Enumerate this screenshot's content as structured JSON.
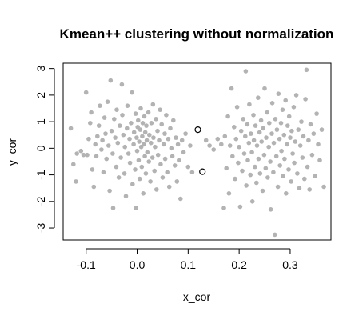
{
  "chart_data": {
    "type": "scatter",
    "title": "Kmean++ clustering without normalization",
    "xlabel": "x_cor",
    "ylabel": "y_cor",
    "xlim": [
      -0.145,
      0.38
    ],
    "ylim": [
      -3.45,
      3.2
    ],
    "x_ticks": [
      -0.1,
      0.0,
      0.1,
      0.2,
      0.3
    ],
    "x_tick_labels": [
      "-0.1",
      "0.0",
      "0.1",
      "0.2",
      "0.3"
    ],
    "y_ticks": [
      -3,
      -2,
      -1,
      0,
      1,
      2,
      3
    ],
    "y_tick_labels": [
      "-3",
      "-2",
      "-1",
      "0",
      "1",
      "2",
      "3"
    ],
    "grid": false,
    "colors": {
      "points": "#b3b3b3",
      "centers": "#000000",
      "axes": "#000000"
    },
    "series": [
      {
        "marker": "filled-circle",
        "points": [
          [
            -0.13,
            0.75
          ],
          [
            -0.125,
            -0.6
          ],
          [
            -0.12,
            -1.25
          ],
          [
            -0.118,
            -0.2
          ],
          [
            -0.11,
            -0.1
          ],
          [
            -0.105,
            -0.25
          ],
          [
            -0.1,
            2.1
          ],
          [
            -0.098,
            -0.25
          ],
          [
            -0.095,
            0.35
          ],
          [
            -0.092,
            0.95
          ],
          [
            -0.09,
            1.35
          ],
          [
            -0.088,
            -0.8
          ],
          [
            -0.085,
            -1.45
          ],
          [
            -0.082,
            0.15
          ],
          [
            -0.08,
            -0.3
          ],
          [
            -0.078,
            0.45
          ],
          [
            -0.075,
            0.85
          ],
          [
            -0.073,
            1.6
          ],
          [
            -0.07,
            -0.05
          ],
          [
            -0.068,
            0.3
          ],
          [
            -0.066,
            -0.9
          ],
          [
            -0.064,
            1.15
          ],
          [
            -0.062,
            0.55
          ],
          [
            -0.06,
            -0.4
          ],
          [
            -0.058,
            1.75
          ],
          [
            -0.056,
            0.1
          ],
          [
            -0.054,
            -1.6
          ],
          [
            -0.052,
            2.55
          ],
          [
            -0.05,
            0.65
          ],
          [
            -0.048,
            -0.2
          ],
          [
            -0.047,
            -2.25
          ],
          [
            -0.045,
            1.1
          ],
          [
            -0.043,
            0.4
          ],
          [
            -0.041,
            -0.7
          ],
          [
            -0.04,
            1.45
          ],
          [
            -0.038,
            0.2
          ],
          [
            -0.036,
            -1.1
          ],
          [
            -0.034,
            0.85
          ],
          [
            -0.032,
            -0.35
          ],
          [
            -0.03,
            2.4
          ],
          [
            -0.029,
            1.25
          ],
          [
            -0.027,
            0.5
          ],
          [
            -0.025,
            -0.95
          ],
          [
            -0.024,
            0.05
          ],
          [
            -0.022,
            -1.8
          ],
          [
            -0.02,
            0.75
          ],
          [
            -0.019,
            1.6
          ],
          [
            -0.017,
            -0.2
          ],
          [
            -0.015,
            0.35
          ],
          [
            -0.014,
            -0.55
          ],
          [
            -0.012,
            0.95
          ],
          [
            -0.01,
            2.1
          ],
          [
            -0.009,
            -1.35
          ],
          [
            -0.007,
            0.15
          ],
          [
            -0.006,
            0.6
          ],
          [
            -0.004,
            -0.8
          ],
          [
            -0.003,
            1.3
          ],
          [
            -0.002,
            -2.25
          ],
          [
            -0.001,
            0.4
          ],
          [
            0.0,
            -0.1
          ],
          [
            0.001,
            0.8
          ],
          [
            0.002,
            1.05
          ],
          [
            0.003,
            -0.45
          ],
          [
            0.004,
            0.25
          ],
          [
            0.005,
            -1.15
          ],
          [
            0.006,
            0.7
          ],
          [
            0.007,
            1.5
          ],
          [
            0.008,
            0.05
          ],
          [
            0.009,
            -0.7
          ],
          [
            0.01,
            0.45
          ],
          [
            0.011,
            0.95
          ],
          [
            0.012,
            -1.7
          ],
          [
            0.013,
            0.15
          ],
          [
            0.014,
            1.2
          ],
          [
            0.015,
            -0.3
          ],
          [
            0.016,
            0.6
          ],
          [
            0.017,
            -0.95
          ],
          [
            0.018,
            0.85
          ],
          [
            0.019,
            0.3
          ],
          [
            0.02,
            -0.15
          ],
          [
            0.022,
            1.35
          ],
          [
            0.023,
            -0.5
          ],
          [
            0.024,
            0.5
          ],
          [
            0.026,
            -1.25
          ],
          [
            0.027,
            0.2
          ],
          [
            0.028,
            0.95
          ],
          [
            0.03,
            -0.35
          ],
          [
            0.031,
            1.65
          ],
          [
            0.032,
            0.4
          ],
          [
            0.034,
            -0.85
          ],
          [
            0.035,
            0.05
          ],
          [
            0.037,
            1.1
          ],
          [
            0.038,
            -1.55
          ],
          [
            0.04,
            0.65
          ],
          [
            0.041,
            -0.25
          ],
          [
            0.043,
            0.3
          ],
          [
            0.045,
            1.45
          ],
          [
            0.046,
            -0.6
          ],
          [
            0.048,
            0.9
          ],
          [
            0.05,
            -1.1
          ],
          [
            0.052,
            0.15
          ],
          [
            0.054,
            0.55
          ],
          [
            0.055,
            -0.4
          ],
          [
            0.057,
            1.25
          ],
          [
            0.059,
            -0.9
          ],
          [
            0.061,
            0.35
          ],
          [
            0.063,
            -1.45
          ],
          [
            0.065,
            0.75
          ],
          [
            0.067,
            0.0
          ],
          [
            0.069,
            -0.3
          ],
          [
            0.071,
            1.05
          ],
          [
            0.074,
            -0.65
          ],
          [
            0.076,
            0.4
          ],
          [
            0.078,
            -1.25
          ],
          [
            0.08,
            0.15
          ],
          [
            0.082,
            -0.45
          ],
          [
            0.085,
            -1.9
          ],
          [
            0.088,
            0.3
          ],
          [
            0.091,
            -0.15
          ],
          [
            0.095,
            0.55
          ],
          [
            0.1,
            -0.7
          ],
          [
            0.104,
            0.1
          ],
          [
            0.108,
            -0.9
          ],
          [
            0.135,
            0.3
          ],
          [
            0.142,
            0.1
          ],
          [
            0.15,
            -0.05
          ],
          [
            0.158,
            0.35
          ],
          [
            0.165,
            0.15
          ],
          [
            0.17,
            -2.25
          ],
          [
            0.172,
            0.45
          ],
          [
            0.175,
            -0.75
          ],
          [
            0.178,
            1.2
          ],
          [
            0.18,
            -1.7
          ],
          [
            0.182,
            0.1
          ],
          [
            0.185,
            2.25
          ],
          [
            0.187,
            -0.3
          ],
          [
            0.19,
            0.8
          ],
          [
            0.192,
            -1.15
          ],
          [
            0.194,
            0.35
          ],
          [
            0.196,
            1.55
          ],
          [
            0.198,
            -0.55
          ],
          [
            0.2,
            0.05
          ],
          [
            0.202,
            -2.2
          ],
          [
            0.204,
            0.65
          ],
          [
            0.206,
            -0.85
          ],
          [
            0.208,
            1.1
          ],
          [
            0.21,
            -0.2
          ],
          [
            0.212,
            0.45
          ],
          [
            0.213,
            2.9
          ],
          [
            0.214,
            -1.4
          ],
          [
            0.216,
            0.9
          ],
          [
            0.217,
            -0.45
          ],
          [
            0.219,
            0.2
          ],
          [
            0.22,
            1.65
          ],
          [
            0.222,
            -1.0
          ],
          [
            0.223,
            0.55
          ],
          [
            0.225,
            -0.15
          ],
          [
            0.226,
            -2.0
          ],
          [
            0.228,
            1.25
          ],
          [
            0.229,
            0.3
          ],
          [
            0.231,
            -0.7
          ],
          [
            0.232,
            0.85
          ],
          [
            0.234,
            -1.3
          ],
          [
            0.235,
            0.1
          ],
          [
            0.237,
            1.9
          ],
          [
            0.238,
            -0.4
          ],
          [
            0.24,
            0.6
          ],
          [
            0.241,
            -0.95
          ],
          [
            0.243,
            1.05
          ],
          [
            0.244,
            0.25
          ],
          [
            0.246,
            -1.6
          ],
          [
            0.247,
            0.75
          ],
          [
            0.249,
            -0.25
          ],
          [
            0.25,
            2.25
          ],
          [
            0.252,
            -0.75
          ],
          [
            0.253,
            0.4
          ],
          [
            0.255,
            1.35
          ],
          [
            0.256,
            -1.1
          ],
          [
            0.258,
            0.05
          ],
          [
            0.259,
            0.95
          ],
          [
            0.261,
            -0.5
          ],
          [
            0.262,
            -2.3
          ],
          [
            0.264,
            0.55
          ],
          [
            0.265,
            1.7
          ],
          [
            0.267,
            -0.9
          ],
          [
            0.268,
            0.2
          ],
          [
            0.27,
            -3.25
          ],
          [
            0.271,
            1.1
          ],
          [
            0.273,
            -0.3
          ],
          [
            0.274,
            0.7
          ],
          [
            0.276,
            -1.45
          ],
          [
            0.277,
            2.05
          ],
          [
            0.279,
            0.35
          ],
          [
            0.28,
            -0.65
          ],
          [
            0.282,
            0.95
          ],
          [
            0.283,
            -0.1
          ],
          [
            0.285,
            1.45
          ],
          [
            0.286,
            -1.05
          ],
          [
            0.288,
            0.5
          ],
          [
            0.289,
            -0.4
          ],
          [
            0.291,
            1.8
          ],
          [
            0.292,
            -1.7
          ],
          [
            0.294,
            0.15
          ],
          [
            0.295,
            0.85
          ],
          [
            0.297,
            -0.8
          ],
          [
            0.298,
            1.2
          ],
          [
            0.3,
            0.4
          ],
          [
            0.302,
            -1.25
          ],
          [
            0.303,
            0.65
          ],
          [
            0.305,
            -0.2
          ],
          [
            0.307,
            1.55
          ],
          [
            0.308,
            -0.55
          ],
          [
            0.31,
            0.25
          ],
          [
            0.312,
            2.0
          ],
          [
            0.314,
            -0.95
          ],
          [
            0.316,
            0.7
          ],
          [
            0.318,
            -1.5
          ],
          [
            0.32,
            0.1
          ],
          [
            0.322,
            1.0
          ],
          [
            0.324,
            -0.35
          ],
          [
            0.326,
            0.45
          ],
          [
            0.328,
            -1.15
          ],
          [
            0.33,
            1.85
          ],
          [
            0.332,
            2.95
          ],
          [
            0.334,
            -0.7
          ],
          [
            0.336,
            0.3
          ],
          [
            0.338,
            -1.55
          ],
          [
            0.34,
            0.9
          ],
          [
            0.343,
            -0.25
          ],
          [
            0.346,
            0.55
          ],
          [
            0.349,
            -1.05
          ],
          [
            0.352,
            1.3
          ],
          [
            0.355,
            0.15
          ],
          [
            0.358,
            -0.45
          ],
          [
            0.362,
            0.7
          ],
          [
            0.366,
            -1.45
          ]
        ]
      },
      {
        "marker": "open-circle",
        "points": [
          [
            0.119,
            0.7
          ],
          [
            0.128,
            -0.88
          ]
        ]
      }
    ]
  }
}
